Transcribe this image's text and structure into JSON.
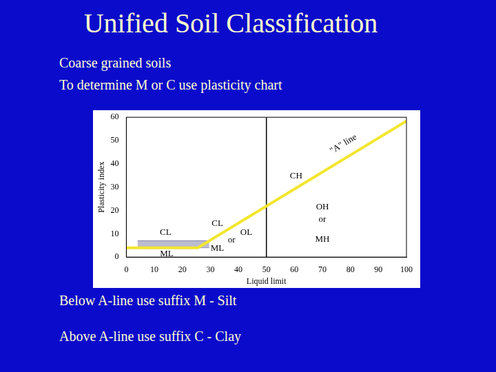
{
  "slide": {
    "title": "Unified Soil Classification",
    "intro": [
      "Coarse grained soils",
      "To determine M or C use plasticity chart"
    ],
    "notes": [
      "Below A-line use suffix M - Silt",
      "Above A-line use suffix C - Clay"
    ]
  },
  "chart_data": {
    "type": "line",
    "x_label": "Liquid limit",
    "y_label": "Plasticity index",
    "xlim": [
      0,
      100
    ],
    "xticks": [
      0,
      10,
      20,
      30,
      40,
      50,
      60,
      70,
      80,
      90,
      100
    ],
    "ylim": [
      0,
      60
    ],
    "yticks": [
      0,
      10,
      20,
      30,
      40,
      50,
      60
    ],
    "grid": false,
    "series": [
      {
        "name": "\"A\" line",
        "color": "#f2e62e",
        "x": [
          0,
          25.5,
          100
        ],
        "values": [
          4,
          4,
          58.4
        ]
      },
      {
        "color": "#000000",
        "x": [
          50,
          50
        ],
        "values": [
          0,
          60
        ]
      },
      {
        "color": "#9a9ab8",
        "x": [
          4,
          29.6
        ],
        "values": [
          7,
          7
        ],
        "lower": [
          4,
          4
        ]
      }
    ],
    "annotations": [
      {
        "text": "CL",
        "x": 14,
        "y": 10.4
      },
      {
        "text": "ML",
        "x": 14.4,
        "y": 1.4
      },
      {
        "text": "CL",
        "x": 32.5,
        "y": 14.4
      },
      {
        "text": "OL",
        "x": 42.8,
        "y": 10.4
      },
      {
        "text": "or",
        "x": 37.6,
        "y": 7.2
      },
      {
        "text": "ML",
        "x": 32.5,
        "y": 3.7
      },
      {
        "text": "CH",
        "x": 60.6,
        "y": 34.9
      },
      {
        "text": "OH",
        "x": 70,
        "y": 21.6
      },
      {
        "text": "or",
        "x": 70,
        "y": 16
      },
      {
        "text": "MH",
        "x": 70,
        "y": 7.5
      },
      {
        "text": "\"A\" line",
        "x": 77.5,
        "y": 48.5,
        "along": true
      }
    ]
  }
}
